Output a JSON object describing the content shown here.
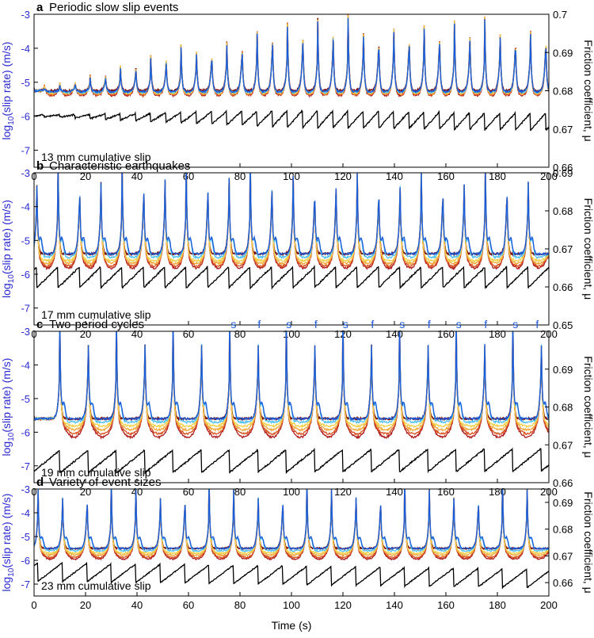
{
  "colors": {
    "left_axis": "#2a2ad0",
    "right_axis": "#000000",
    "cumulative": "#000000",
    "event_label": "#1f5bd6",
    "series": [
      "#7a0a0a",
      "#b01f1f",
      "#d9531e",
      "#f2a93a",
      "#f2d04a",
      "#4fc1f0",
      "#1a5ad8"
    ]
  },
  "chart_data": [
    {
      "type": "line",
      "letter": "a",
      "title": "Periodic slow slip events",
      "ylabel_left": "log10(slip rate) (m/s)",
      "ylabel_left_base": "log",
      "ylabel_left_sub": "10",
      "ylabel_left_rest": "(slip rate) (m/s)",
      "ylabel_right": "Friction coefficient, μ",
      "xlim": [
        0,
        200
      ],
      "ylim_left": [
        -7.5,
        -3
      ],
      "ylim_right": [
        0.66,
        0.7
      ],
      "left_ticks": [
        "-3",
        "-4",
        "-5",
        "-6",
        "-7"
      ],
      "right_ticks": [
        "0.7",
        "0.69",
        "0.68",
        "0.67",
        "0.66"
      ],
      "x_ticks": [
        "0",
        "20",
        "40",
        "60",
        "80",
        "100",
        "120",
        "140",
        "160",
        "180",
        "200"
      ],
      "note": "13 mm cumulative slip",
      "events": {
        "first": 4,
        "period": 5.9,
        "count": 34,
        "peak_start": -5.1,
        "peak_end": -3.0,
        "ramp_events": 15,
        "overshoot_last": 0.2
      },
      "baseline": -5.25,
      "dip_per_series": [
        0.0,
        0.14,
        0.12,
        0.09,
        0.07,
        0.05,
        0.03
      ],
      "friction": {
        "start": 0.6735,
        "end": 0.6718,
        "drop": 0.0045,
        "min_drop": 0.0005
      }
    },
    {
      "type": "line",
      "letter": "b",
      "title": "Characteristic earthquakes",
      "ylabel_left": "log10(slip rate) (m/s)",
      "ylabel_left_base": "log",
      "ylabel_left_sub": "10",
      "ylabel_left_rest": "(slip rate) (m/s)",
      "ylabel_right": "Friction coefficient, μ",
      "xlim": [
        0,
        200
      ],
      "ylim_left": [
        -7.5,
        -3
      ],
      "ylim_right": [
        0.65,
        0.69
      ],
      "left_ticks": [
        "-3",
        "-4",
        "-5",
        "-6",
        "-7"
      ],
      "right_ticks": [
        "0.69",
        "0.68",
        "0.67",
        "0.66",
        "0.65"
      ],
      "x_ticks": [
        "0",
        "20",
        "40",
        "60",
        "80",
        "100",
        "120",
        "140",
        "160",
        "180",
        "200"
      ],
      "note": "17 mm cumulative slip",
      "events": {
        "first": 1,
        "period": 8.3,
        "count": 24
      },
      "baseline": -5.4,
      "dip_per_series": [
        0.0,
        0.42,
        0.36,
        0.28,
        0.2,
        0.1,
        0.0
      ],
      "friction": {
        "start": 0.6625,
        "end": 0.6625,
        "drop": 0.0055
      }
    },
    {
      "type": "line",
      "letter": "c",
      "title": "Two-period cycles",
      "ylabel_left": "log10(slip rate) (m/s)",
      "ylabel_left_base": "log",
      "ylabel_left_sub": "10",
      "ylabel_left_rest": "(slip rate) (m/s)",
      "ylabel_right": "Friction coefficient, μ",
      "xlim": [
        0,
        200
      ],
      "ylim_left": [
        -7.5,
        -3
      ],
      "ylim_right": [
        0.66,
        0.7
      ],
      "left_ticks": [
        "-3",
        "-4",
        "-5",
        "-6",
        "-7"
      ],
      "right_ticks": [
        "0.69",
        "0.68",
        "0.67",
        "0.66"
      ],
      "x_ticks": [
        "0",
        "20",
        "40",
        "60",
        "80",
        "100",
        "120",
        "140",
        "160",
        "180",
        "200"
      ],
      "note": "19 mm cumulative slip",
      "events": {
        "first": 10,
        "period": 11,
        "count": 18
      },
      "baseline": -5.6,
      "dip_per_series": [
        0.0,
        0.55,
        0.45,
        0.33,
        0.22,
        0.1,
        0.0
      ],
      "friction": {
        "start": 0.6655,
        "end": 0.666,
        "drop": 0.006
      },
      "event_labels": [
        {
          "x": 77.5,
          "text": "s"
        },
        {
          "x": 87.5,
          "text": "f"
        },
        {
          "x": 99,
          "text": "s"
        },
        {
          "x": 109.5,
          "text": "f"
        },
        {
          "x": 121,
          "text": "s"
        },
        {
          "x": 131.5,
          "text": "f"
        },
        {
          "x": 143,
          "text": "s"
        },
        {
          "x": 153.5,
          "text": "f"
        },
        {
          "x": 165,
          "text": "s"
        },
        {
          "x": 175.5,
          "text": "f"
        },
        {
          "x": 187,
          "text": "s"
        },
        {
          "x": 195.5,
          "text": "f"
        }
      ]
    },
    {
      "type": "line",
      "letter": "d",
      "title": "Variety of event sizes",
      "ylabel_left": "log10(slip rate) (m/s)",
      "ylabel_left_base": "log",
      "ylabel_left_sub": "10",
      "ylabel_left_rest": "(slip rate) (m/s)",
      "ylabel_right": "Friction coefficient, μ",
      "xlim": [
        0,
        200
      ],
      "ylim_left": [
        -7.5,
        -3
      ],
      "ylim_right": [
        0.655,
        0.695
      ],
      "left_ticks": [
        "-3",
        "-4",
        "-5",
        "-6",
        "-7"
      ],
      "right_ticks": [
        "0.69",
        "0.68",
        "0.67",
        "0.66"
      ],
      "x_ticks": [
        "0",
        "20",
        "40",
        "60",
        "80",
        "100",
        "120",
        "140",
        "160",
        "180",
        "200"
      ],
      "xlabel": "Time (s)",
      "note": "23 mm cumulative slip",
      "events": {
        "first": 1.5,
        "period": 9.5,
        "count": 22
      },
      "baseline": -5.5,
      "dip_per_series": [
        0.0,
        0.45,
        0.38,
        0.28,
        0.2,
        0.1,
        0.0
      ],
      "friction": {
        "start": 0.664,
        "end": 0.6615,
        "drop": 0.007
      }
    }
  ]
}
